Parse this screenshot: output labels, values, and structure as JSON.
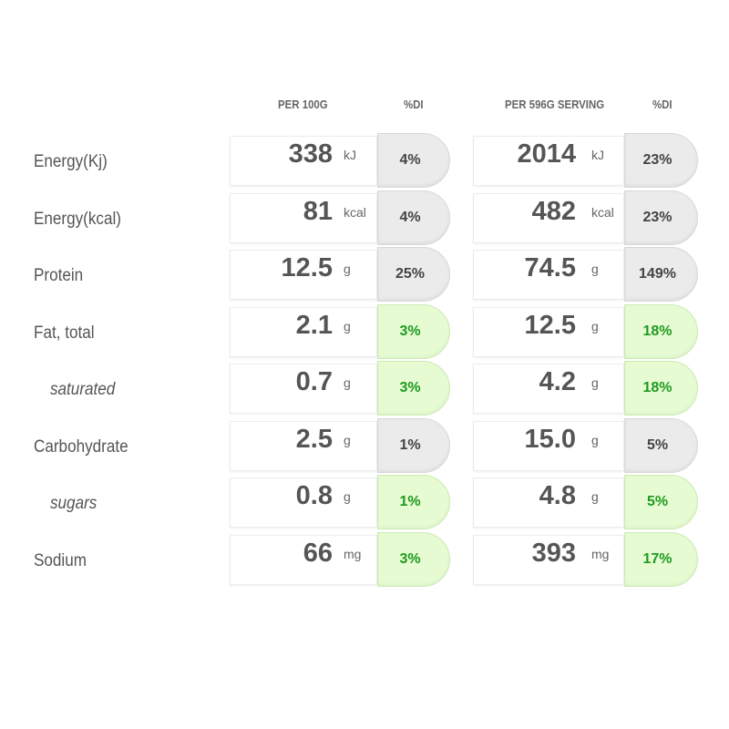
{
  "headers": {
    "per100": "PER 100G",
    "di1": "%DI",
    "perServing": "PER 596G SERVING",
    "di2": "%DI"
  },
  "rows": [
    {
      "label": "Energy(Kj)",
      "sub": false,
      "v1": "338",
      "u1": "kJ",
      "p1": "4%",
      "c1": "grey",
      "v2": "2014",
      "u2": "kJ",
      "p2": "23%",
      "c2": "grey"
    },
    {
      "label": "Energy(kcal)",
      "sub": false,
      "v1": "81",
      "u1": "kcal",
      "p1": "4%",
      "c1": "grey",
      "v2": "482",
      "u2": "kcal",
      "p2": "23%",
      "c2": "grey"
    },
    {
      "label": "Protein",
      "sub": false,
      "v1": "12.5",
      "u1": "g",
      "p1": "25%",
      "c1": "grey",
      "v2": "74.5",
      "u2": "g",
      "p2": "149%",
      "c2": "grey"
    },
    {
      "label": "Fat, total",
      "sub": false,
      "v1": "2.1",
      "u1": "g",
      "p1": "3%",
      "c1": "green",
      "v2": "12.5",
      "u2": "g",
      "p2": "18%",
      "c2": "green"
    },
    {
      "label": "saturated",
      "sub": true,
      "v1": "0.7",
      "u1": "g",
      "p1": "3%",
      "c1": "green",
      "v2": "4.2",
      "u2": "g",
      "p2": "18%",
      "c2": "green"
    },
    {
      "label": "Carbohydrate",
      "sub": false,
      "v1": "2.5",
      "u1": "g",
      "p1": "1%",
      "c1": "grey",
      "v2": "15.0",
      "u2": "g",
      "p2": "5%",
      "c2": "grey"
    },
    {
      "label": "sugars",
      "sub": true,
      "v1": "0.8",
      "u1": "g",
      "p1": "1%",
      "c1": "green",
      "v2": "4.8",
      "u2": "g",
      "p2": "5%",
      "c2": "green"
    },
    {
      "label": "Sodium",
      "sub": false,
      "v1": "66",
      "u1": "mg",
      "p1": "3%",
      "c1": "green",
      "v2": "393",
      "u2": "mg",
      "p2": "17%",
      "c2": "green"
    }
  ]
}
